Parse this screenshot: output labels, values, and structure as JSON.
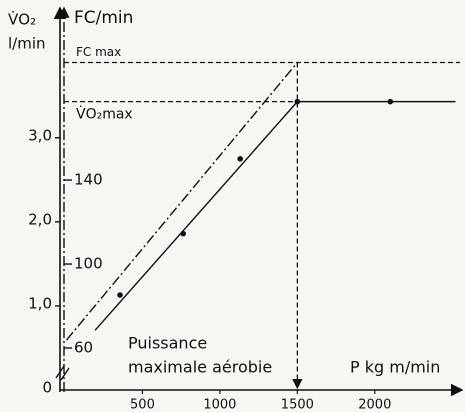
{
  "chart_data": {
    "type": "line",
    "y_label": [
      "V̇O₂",
      "l/min"
    ],
    "y2_label": "FC/min",
    "x_label": "P kg m/min",
    "annotation": [
      "Puissance",
      "maximale aérobie"
    ],
    "xlim": [
      0,
      2550
    ],
    "xticks": [
      500,
      1000,
      1500,
      2000
    ],
    "ylim": [
      0,
      4.52
    ],
    "yticks": [
      0,
      {
        "value": 1,
        "label": "1,0"
      },
      {
        "value": 2,
        "label": "2,0"
      },
      {
        "value": 3,
        "label": "3,0"
      }
    ],
    "y2lim": [
      40,
      221
    ],
    "y2ticks": [
      60,
      100,
      140
    ],
    "fc_max": {
      "label": "FC max",
      "value": 196
    },
    "vo2_max": {
      "label": "V̇O₂max",
      "value": 3.43
    },
    "p_max": 1500,
    "color": "#111111",
    "series": [
      {
        "style": "solid",
        "x": [
          194,
          1500,
          2521
        ],
        "values": [
          0.71,
          3.43,
          3.43
        ]
      },
      {
        "style": "points",
        "x": [
          355,
          763,
          1131,
          1500,
          2100
        ],
        "values": [
          1.13,
          1.86,
          2.75,
          3.43,
          3.43
        ]
      },
      {
        "style": "dashdot",
        "axis": "y2",
        "x": [
          10,
          1500
        ],
        "values": [
          63.8,
          196
        ]
      }
    ]
  }
}
